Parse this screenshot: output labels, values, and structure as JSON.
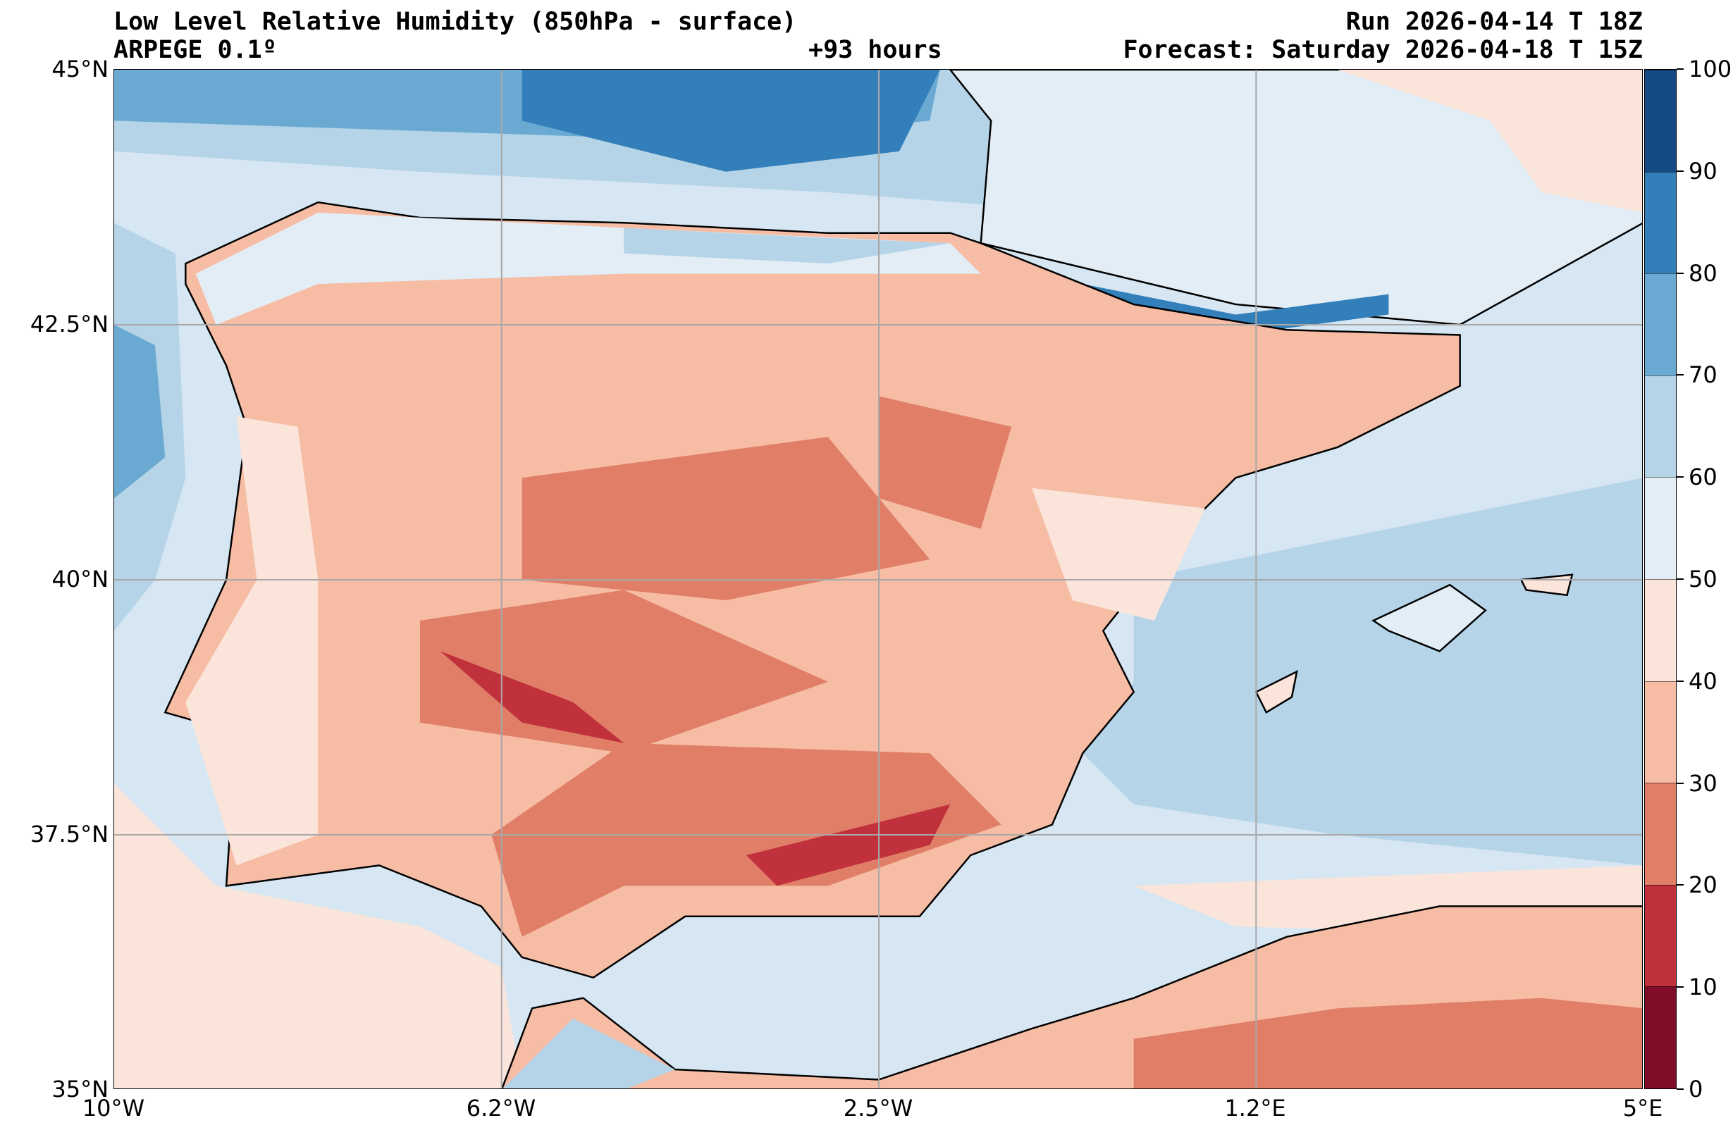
{
  "header": {
    "title": "Low Level Relative Humidity (850hPa - surface)",
    "model": "ARPEGE 0.1º",
    "lead_time": "+93 hours",
    "run": "Run 2026-04-14 T 18Z",
    "forecast": "Forecast: Saturday 2026-04-18 T 15Z"
  },
  "axes": {
    "lat_labels": [
      "45°N",
      "42.5°N",
      "40°N",
      "37.5°N",
      "35°N"
    ],
    "lat_values": [
      45,
      42.5,
      40,
      37.5,
      35
    ],
    "lon_labels": [
      "10°W",
      "6.2°W",
      "2.5°W",
      "1.2°E",
      "5°E"
    ],
    "lon_values": [
      -10,
      -6.2,
      -2.5,
      1.2,
      5
    ]
  },
  "colorbar": {
    "labels": [
      "0",
      "10",
      "20",
      "30",
      "40",
      "50",
      "60",
      "70",
      "80",
      "90",
      "100"
    ],
    "colors": [
      "#7f0d27",
      "#c0313b",
      "#e07e68",
      "#f6bca4",
      "#fbe5db",
      "#e3edf5",
      "#b5d4e8",
      "#6aaad2",
      "#337fba",
      "#164a85"
    ]
  }
}
